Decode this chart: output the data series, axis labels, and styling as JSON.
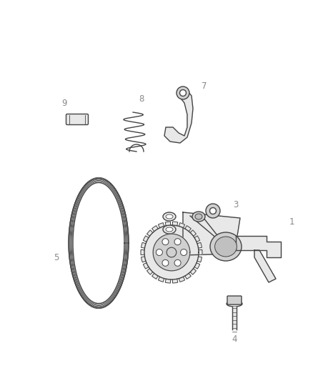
{
  "background_color": "#ffffff",
  "line_color": "#444444",
  "label_color": "#888888",
  "figsize": [
    4.38,
    5.33
  ],
  "dpi": 100
}
